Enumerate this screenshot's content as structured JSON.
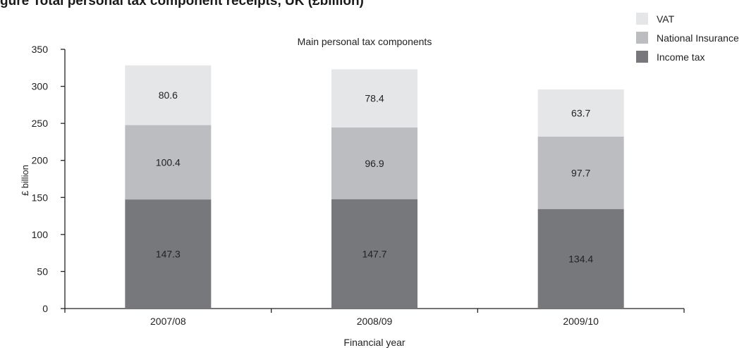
{
  "header": {
    "caption_fragment": "gure      Total personal tax component receipts, UK  (£billion)"
  },
  "chart_data": {
    "type": "bar",
    "stacked": true,
    "title": "Main personal tax components",
    "xlabel": "Financial year",
    "ylabel": "£ billion",
    "categories": [
      "2007/08",
      "2008/09",
      "2009/10"
    ],
    "series": [
      {
        "name": "Income tax",
        "values": [
          147.3,
          147.7,
          134.4
        ],
        "color": "#77787b"
      },
      {
        "name": "National Insurance",
        "values": [
          100.4,
          96.9,
          97.7
        ],
        "color": "#bcbdc0"
      },
      {
        "name": "VAT",
        "values": [
          80.6,
          78.4,
          63.7
        ],
        "color": "#e5e6e7"
      }
    ],
    "legend_order": [
      "VAT",
      "National Insurance",
      "Income tax"
    ],
    "ylim": [
      0,
      350
    ],
    "yticks": [
      0,
      50,
      100,
      150,
      200,
      250,
      300,
      350
    ],
    "grid": false,
    "legend_position": "top-right"
  }
}
